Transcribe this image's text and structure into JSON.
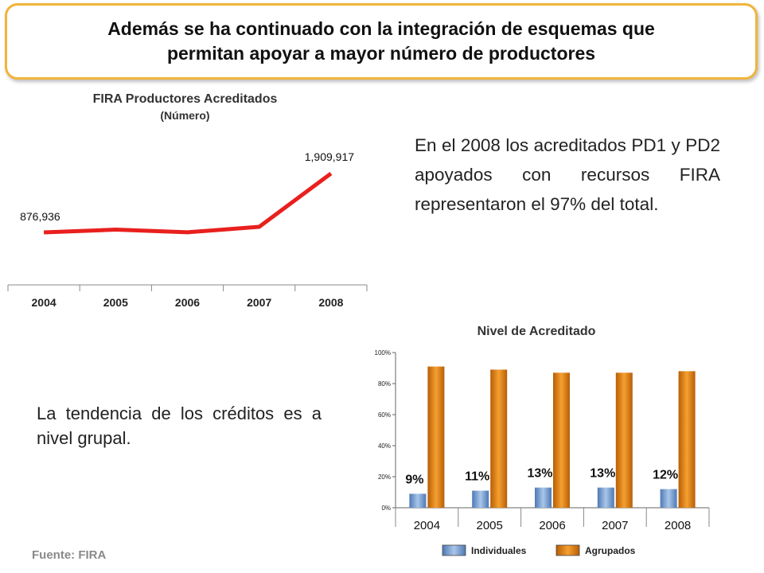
{
  "banner": {
    "line1": "Además se ha continuado con la integración de esquemas que",
    "line2": "permitan apoyar a mayor número de productores"
  },
  "text": {
    "paragraph1": "En el 2008 los acreditados PD1 y PD2 apoyados con recursos FIRA representaron el 97% del total.",
    "paragraph2": "La tendencia de los créditos es a nivel grupal."
  },
  "source": "Fuente: FIRA",
  "colors": {
    "line": "#e8201e",
    "individuales": "#7aa0cf",
    "agrupados": "#e8850f",
    "banner_border": "#f0b43c"
  },
  "chart_data": [
    {
      "type": "line",
      "title": "FIRA Productores Acreditados",
      "subtitle": "(Número)",
      "categories": [
        "2004",
        "2005",
        "2006",
        "2007",
        "2008"
      ],
      "series": [
        {
          "values": [
            876936,
            925000,
            878000,
            975000,
            1909917
          ]
        }
      ],
      "data_labels": [
        {
          "category": "2004",
          "label": "876,936"
        },
        {
          "category": "2008",
          "label": "1,909,917"
        }
      ],
      "grid": false
    },
    {
      "type": "bar",
      "title": "Nivel de Acreditado",
      "categories": [
        "2004",
        "2005",
        "2006",
        "2007",
        "2008"
      ],
      "ylim": [
        0,
        100
      ],
      "yticks": [
        "0%",
        "20%",
        "40%",
        "60%",
        "80%",
        "100%"
      ],
      "series": [
        {
          "name": "Individuales",
          "values": [
            9,
            11,
            13,
            13,
            12
          ],
          "labels": [
            "9%",
            "11%",
            "13%",
            "13%",
            "12%"
          ]
        },
        {
          "name": "Agrupados",
          "values": [
            91,
            89,
            87,
            87,
            88
          ]
        }
      ],
      "legend": "bottom"
    }
  ]
}
